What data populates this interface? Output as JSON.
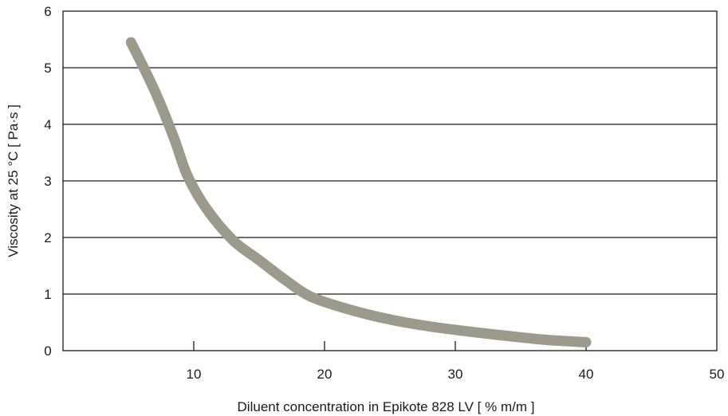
{
  "chart_data": {
    "type": "line",
    "title": "",
    "xlabel": "Diluent concentration in Epikote 828 LV [ % m/m ]",
    "ylabel": "Viscosity at 25 °C [ Pa·s ]",
    "xlim": [
      0,
      50
    ],
    "ylim": [
      0,
      6
    ],
    "x_ticks": [
      10,
      20,
      30,
      40,
      50
    ],
    "y_ticks": [
      0,
      1,
      2,
      3,
      4,
      5,
      6
    ],
    "grid": "horizontal",
    "series": [
      {
        "color": "#9b9a8b",
        "x": [
          5.2,
          7,
          8.5,
          9.5,
          11,
          13,
          15,
          17,
          19,
          22,
          25,
          28,
          31,
          34,
          37,
          40
        ],
        "y": [
          5.45,
          4.6,
          3.75,
          3.1,
          2.5,
          1.95,
          1.6,
          1.25,
          0.95,
          0.72,
          0.55,
          0.43,
          0.34,
          0.26,
          0.19,
          0.15
        ]
      }
    ]
  }
}
